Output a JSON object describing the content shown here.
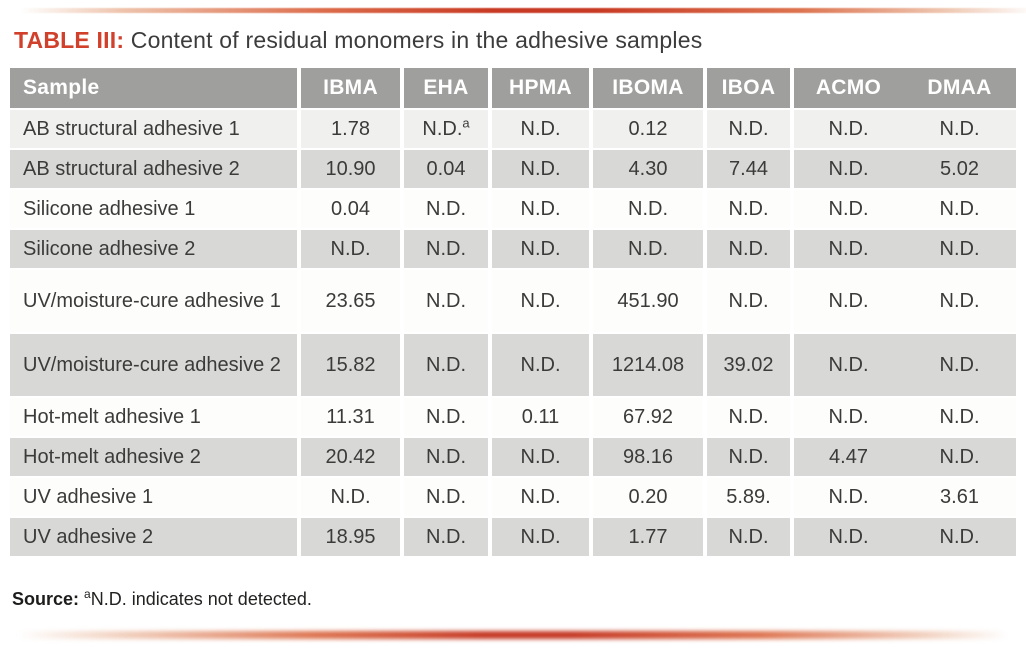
{
  "title": {
    "label": "TABLE III:",
    "text": " Content of residual monomers in the adhesive samples"
  },
  "table": {
    "columns": [
      "Sample",
      "IBMA",
      "EHA",
      "HPMA",
      "IBOMA",
      "IBOA",
      "ACMO",
      "DMAA"
    ],
    "rows": [
      {
        "sample": "AB structural adhesive 1",
        "values": [
          "1.78",
          "N.D.^a",
          "N.D.",
          "0.12",
          "N.D.",
          "N.D.",
          "N.D."
        ]
      },
      {
        "sample": "AB structural adhesive 2",
        "values": [
          "10.90",
          "0.04",
          "N.D.",
          "4.30",
          "7.44",
          "N.D.",
          "5.02"
        ]
      },
      {
        "sample": "Silicone adhesive 1",
        "values": [
          "0.04",
          "N.D.",
          "N.D.",
          "N.D.",
          "N.D.",
          "N.D.",
          "N.D."
        ]
      },
      {
        "sample": "Silicone adhesive 2",
        "values": [
          "N.D.",
          "N.D.",
          "N.D.",
          "N.D.",
          "N.D.",
          "N.D.",
          "N.D."
        ]
      },
      {
        "sample": "UV/moisture-cure adhesive 1",
        "values": [
          "23.65",
          "N.D.",
          "N.D.",
          "451.90",
          "N.D.",
          "N.D.",
          "N.D."
        ],
        "tall": true
      },
      {
        "sample": "UV/moisture-cure adhesive 2",
        "values": [
          "15.82",
          "N.D.",
          "N.D.",
          "1214.08",
          "39.02",
          "N.D.",
          "N.D."
        ],
        "tall": true
      },
      {
        "sample": "Hot-melt adhesive 1",
        "values": [
          "11.31",
          "N.D.",
          "0.11",
          "67.92",
          "N.D.",
          "N.D.",
          "N.D."
        ]
      },
      {
        "sample": "Hot-melt adhesive 2",
        "values": [
          "20.42",
          "N.D.",
          "N.D.",
          "98.16",
          "N.D.",
          "4.47",
          "N.D."
        ]
      },
      {
        "sample": "UV adhesive 1",
        "values": [
          "N.D.",
          "N.D.",
          "N.D.",
          "0.20",
          "5.89.",
          "N.D.",
          "3.61"
        ]
      },
      {
        "sample": "UV adhesive 2",
        "values": [
          "18.95",
          "N.D.",
          "N.D.",
          "1.77",
          "N.D.",
          "N.D.",
          "N.D."
        ]
      }
    ]
  },
  "footnote": {
    "label": "Source:",
    "sup": "a",
    "text": "N.D. indicates not detected."
  },
  "colors": {
    "accent_red": "#c83a24",
    "title_red": "#d0402b",
    "header_gray": "#9f9f9d",
    "row_gray": "#d8d8d6",
    "row_light_gray": "#f0f0ee",
    "row_white": "#fdfdfc",
    "text_dark": "#3b3b3a"
  }
}
